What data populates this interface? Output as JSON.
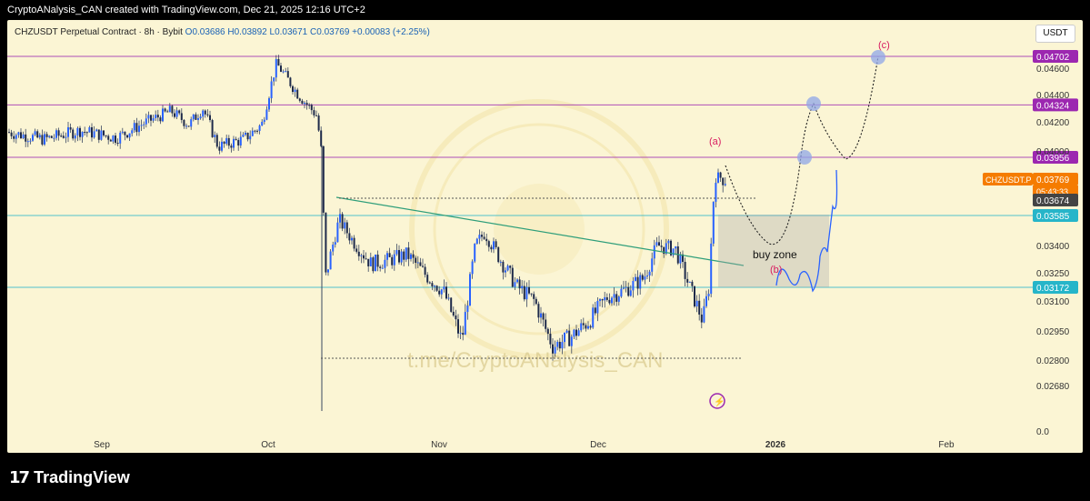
{
  "header": {
    "text": "CryptoANalysis_CAN created with TradingView.com, Dec 21, 2025 12:16 UTC+2"
  },
  "symbol": {
    "name": "CHZUSDT Perpetual Contract · 8h · Bybit",
    "ohlc": "O0.03686  H0.03892  L0.03671  C0.03769  +0.00083 (+2.25%)"
  },
  "currency": "USDT",
  "watermark": "t.me/CryptoANalysis_CAN",
  "footer": {
    "logo": "TradingView"
  },
  "chart_data": {
    "type": "candlestick",
    "symbol": "CHZUSDT.P",
    "timeframe": "8h",
    "x_ticks": [
      "Sep",
      "Oct",
      "Nov",
      "Dec",
      "2026",
      "Feb"
    ],
    "y_ticks": [
      0.046,
      0.044,
      0.042,
      0.04,
      0.034,
      0.0325,
      0.031,
      0.0295,
      0.028,
      0.0268,
      0.0
    ],
    "y_tick_labels": [
      "0.04600",
      "0.04400",
      "0.04200",
      "0.04000",
      "0.03400",
      "0.03250",
      "0.03100",
      "0.02950",
      "0.02800",
      "0.02680",
      "0.0"
    ],
    "horizontal_levels": [
      {
        "value": 0.04702,
        "label": "0.04702",
        "color": "#9c27b0"
      },
      {
        "value": 0.04324,
        "label": "0.04324",
        "color": "#9c27b0"
      },
      {
        "value": 0.03956,
        "label": "0.03956",
        "color": "#9c27b0"
      },
      {
        "value": 0.03585,
        "label": "0.03585",
        "color": "#26b5c9"
      },
      {
        "value": 0.03172,
        "label": "0.03172",
        "color": "#26b5c9"
      }
    ],
    "price_tag": {
      "symbol": "CHZUSDT.P",
      "price": "0.03769",
      "countdown": "05:43:33"
    },
    "secondary_tag": "0.03674",
    "annotations": [
      {
        "text": "(a)",
        "color": "#d81b60"
      },
      {
        "text": "(b)",
        "color": "#d81b60"
      },
      {
        "text": "(c)",
        "color": "#d81b60"
      },
      {
        "text": "buy zone",
        "color": "#111111"
      }
    ],
    "grid": false
  }
}
